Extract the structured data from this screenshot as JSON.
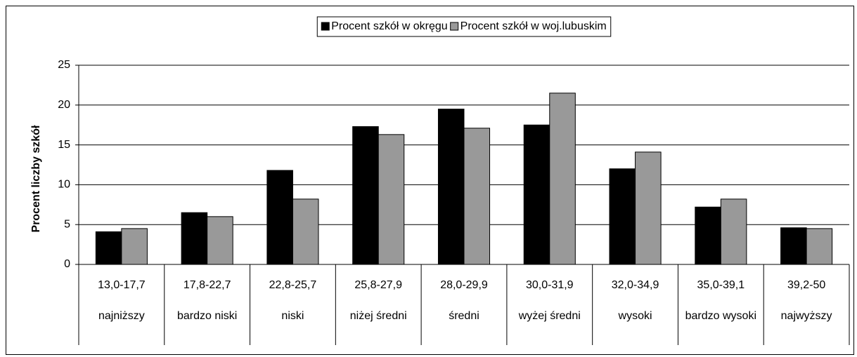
{
  "chart_data": {
    "type": "bar",
    "y_label": "Procent liczby szkół",
    "categories": [
      "13,0-17,7",
      "17,8-22,7",
      "22,8-25,7",
      "25,8-27,9",
      "28,0-29,9",
      "30,0-31,9",
      "32,0-34,9",
      "35,0-39,1",
      "39,2-50"
    ],
    "category_groups": [
      "najniższy",
      "bardzo niski",
      "niski",
      "niżej średni",
      "średni",
      "wyżej średni",
      "wysoki",
      "bardzo wysoki",
      "najwyższy"
    ],
    "series": [
      {
        "name": "Procent szkół w okręgu",
        "color": "#000000",
        "values": [
          4.1,
          6.5,
          11.8,
          17.3,
          19.5,
          17.5,
          12.0,
          7.2,
          4.6
        ]
      },
      {
        "name": "Procent szkół w woj.lubuskim",
        "color": "#999999",
        "values": [
          4.5,
          6.0,
          8.2,
          16.3,
          17.1,
          21.5,
          14.1,
          8.2,
          4.5
        ]
      }
    ],
    "ylim": [
      0,
      25
    ],
    "yticks": [
      0,
      5,
      10,
      15,
      20,
      25
    ],
    "grid": true,
    "legend": "top"
  }
}
